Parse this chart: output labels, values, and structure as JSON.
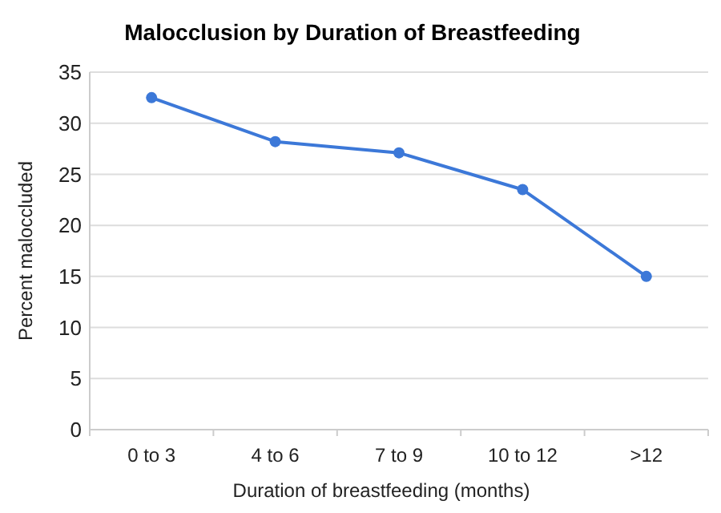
{
  "chart_data": {
    "type": "line",
    "title": "Malocclusion by Duration of Breastfeeding",
    "xlabel": "Duration of breastfeeding (months)",
    "ylabel": "Percent maloccluded",
    "categories": [
      "0 to 3",
      "4 to 6",
      "7 to 9",
      "10 to 12",
      ">12"
    ],
    "series": [
      {
        "color": "#3c78d8",
        "values": [
          32.5,
          28.2,
          27.1,
          23.5,
          15.0
        ]
      }
    ],
    "ylim": [
      0,
      35
    ],
    "yticks": [
      0,
      5,
      10,
      15,
      20,
      25,
      30,
      35
    ],
    "grid": "y",
    "marker": "circle",
    "line_style": "solid"
  }
}
